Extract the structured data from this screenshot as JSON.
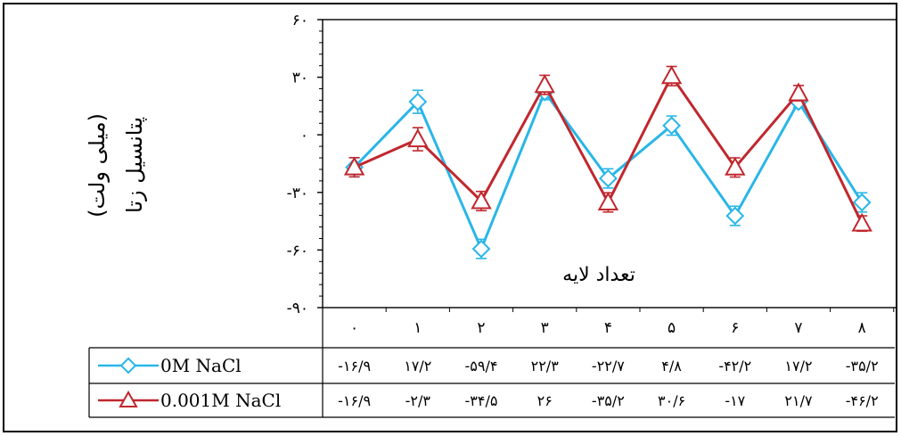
{
  "chart_data": {
    "type": "line",
    "ylabel": [
      "پتانسیل زتا",
      "(میلی ولت)"
    ],
    "xlabel": "تعداد لایه",
    "categories": [
      "۰",
      "۱",
      "۲",
      "۳",
      "۴",
      "۵",
      "۶",
      "۷",
      "۸"
    ],
    "x": [
      0,
      1,
      2,
      3,
      4,
      5,
      6,
      7,
      8
    ],
    "ylim": [
      -90,
      60
    ],
    "yticks": [
      60,
      30,
      0,
      -30,
      -60,
      -90
    ],
    "ytick_labels": [
      "۶۰",
      "۳۰",
      "۰",
      "-۳۰",
      "-۶۰",
      "-۹۰"
    ],
    "series": [
      {
        "name": "0M NaCl",
        "color": "#29b6e8",
        "marker": "diamond",
        "values": [
          -16.9,
          17.2,
          -59.4,
          22.3,
          -22.7,
          4.8,
          -42.2,
          17.2,
          -35.2
        ],
        "errors": [
          5,
          6,
          5,
          4,
          5,
          5,
          5,
          3,
          5
        ],
        "table": [
          "-۱۶/۹",
          "۱۷/۲",
          "-۵۹/۴",
          "۲۲/۳",
          "-۲۲/۷",
          "۴/۸",
          "-۴۲/۲",
          "۱۷/۲",
          "-۳۵/۲"
        ]
      },
      {
        "name": "0.001M NaCl",
        "color": "#c0272d",
        "marker": "triangle",
        "values": [
          -16.9,
          -2.3,
          -34.5,
          26,
          -35.2,
          30.6,
          -17,
          21.7,
          -46.2
        ],
        "errors": [
          5,
          6,
          5,
          5,
          5,
          5,
          5,
          4,
          4
        ],
        "table": [
          "-۱۶/۹",
          "-۲/۳",
          "-۳۴/۵",
          "۲۶",
          "-۳۵/۲",
          "۳۰/۶",
          "-۱۷",
          "۲۱/۷",
          "-۴۶/۲"
        ]
      }
    ],
    "grid": false,
    "legend": "table-below"
  }
}
